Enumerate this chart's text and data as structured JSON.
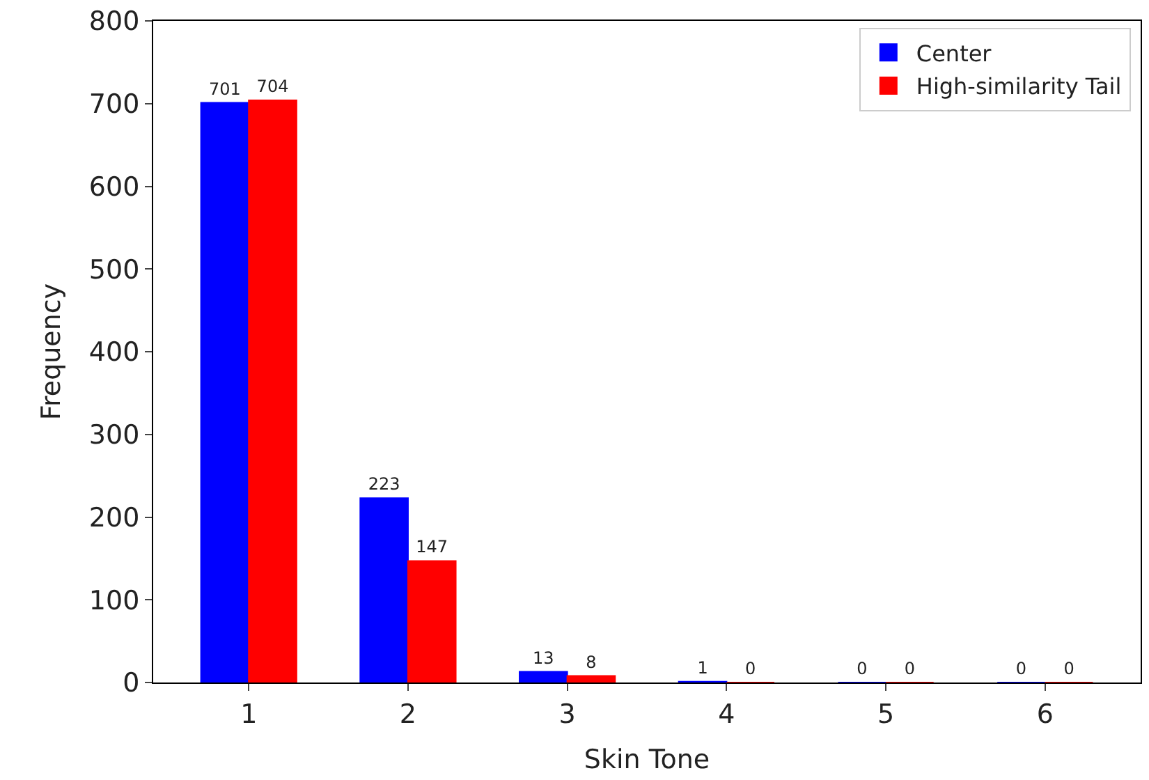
{
  "chart_data": {
    "type": "bar",
    "xlabel": "Skin Tone",
    "ylabel": "Frequency",
    "categories": [
      "1",
      "2",
      "3",
      "4",
      "5",
      "6"
    ],
    "series": [
      {
        "name": "Center",
        "color": "#0000ff",
        "values": [
          701,
          223,
          13,
          1,
          0,
          0
        ]
      },
      {
        "name": "High-similarity Tail",
        "color": "#ff0000",
        "values": [
          704,
          147,
          8,
          0,
          0,
          0
        ]
      }
    ],
    "ylim": [
      0,
      800
    ],
    "yticks": [
      0,
      100,
      200,
      300,
      400,
      500,
      600,
      700,
      800
    ],
    "data_labels": true,
    "legend": "top right"
  }
}
